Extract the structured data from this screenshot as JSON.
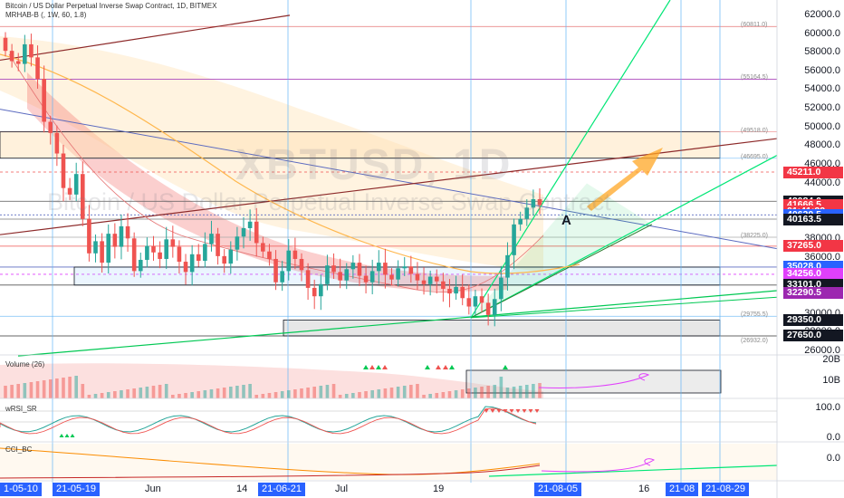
{
  "header": {
    "title": "Bitcoin / US Dollar Perpetual Inverse Swap Contract, 1D, BITMEX",
    "indicator": "MRHAB-B (, 1W, 60, 1.8)"
  },
  "watermark": {
    "symbol": "XBTUSD, 1D",
    "subtitle": "Bitcoin / US Dollar Perpetual Inverse Swap Contract"
  },
  "panes": {
    "volume_label": "Volume (26)",
    "wrsi_label": "wRSI_SR",
    "cci_label": "CCI_BC",
    "volume_ticks": [
      "20B",
      "10B"
    ],
    "wrsi_ticks": [
      "100.0",
      "0.0"
    ],
    "cci_ticks": [
      "0.0"
    ]
  },
  "chart_data": {
    "type": "candlestick",
    "y_axis_ticks": [
      "62000.0",
      "60000.0",
      "58000.0",
      "56000.0",
      "54000.0",
      "52000.0",
      "50000.0",
      "48000.0",
      "46000.0",
      "44000.0",
      "42000.0",
      "40000.0",
      "38000.0",
      "36000.0",
      "34000.0",
      "32000.0",
      "30000.0",
      "28000.0",
      "26000.0"
    ],
    "price_tags": [
      {
        "label": "45211.0",
        "value": 45211,
        "color": "#f23645"
      },
      {
        "label": "42084.0",
        "value": 42084,
        "color": "#131722"
      },
      {
        "label": "41666.5",
        "value": 41666.5,
        "color": "#f23645"
      },
      {
        "label": "01:41:22",
        "value": 40950,
        "color": "#f23645"
      },
      {
        "label": "40620.5",
        "value": 40620.5,
        "color": "#2962ff"
      },
      {
        "label": "40163.5",
        "value": 40163.5,
        "color": "#131722"
      },
      {
        "label": "37265.0",
        "value": 37265,
        "color": "#f23645"
      },
      {
        "label": "35028.0",
        "value": 35028,
        "color": "#2962ff"
      },
      {
        "label": "34256.0",
        "value": 34256,
        "color": "#e040fb"
      },
      {
        "label": "33101.0",
        "value": 33101,
        "color": "#131722"
      },
      {
        "label": "32290.5",
        "value": 32290.5,
        "color": "#9c27b0"
      },
      {
        "label": "29350.0",
        "value": 29350,
        "color": "#131722"
      },
      {
        "label": "27650.0",
        "value": 27650,
        "color": "#131722"
      }
    ],
    "level_labels": [
      {
        "label": "(60811.0)",
        "value": 60811
      },
      {
        "label": "(55164.5)",
        "value": 55164.5
      },
      {
        "label": "(49518.0)",
        "value": 49518
      },
      {
        "label": "(46695.0)",
        "value": 46695
      },
      {
        "label": "(38225.0)",
        "value": 38225
      },
      {
        "label": "(29755.5)",
        "value": 29755.5
      },
      {
        "label": "(26932.0)",
        "value": 26932
      }
    ],
    "x_axis_labels": [
      {
        "label": "1-05-10",
        "highlight": true
      },
      {
        "label": "21-05-19",
        "highlight": true
      },
      {
        "label": "Jun",
        "highlight": false
      },
      {
        "label": "14",
        "highlight": false
      },
      {
        "label": "21-06-21",
        "highlight": true
      },
      {
        "label": "Jul",
        "highlight": false
      },
      {
        "label": "19",
        "highlight": false
      },
      {
        "label": "21-08-05",
        "highlight": true
      },
      {
        "label": "16",
        "highlight": false
      },
      {
        "label": "21-08",
        "highlight": true
      },
      {
        "label": "21-08-29",
        "highlight": true
      }
    ],
    "annotation_text": "A",
    "closes": [
      58200,
      57100,
      56800,
      58900,
      57500,
      55200,
      50600,
      49400,
      47200,
      43500,
      42800,
      45000,
      40200,
      36500,
      37800,
      35500,
      38600,
      37200,
      39400,
      38100,
      34600,
      35800,
      37300,
      36600,
      35900,
      38000,
      37200,
      35600,
      34500,
      36400,
      35700,
      37500,
      38600,
      36200,
      35400,
      36900,
      38300,
      39200,
      39900,
      37600,
      36700,
      35900,
      33400,
      34600,
      36800,
      35900,
      34700,
      32800,
      31900,
      33200,
      35200,
      34500,
      33600,
      34800,
      35500,
      34100,
      33400,
      34600,
      35500,
      34200,
      33700,
      34900,
      35100,
      34300,
      33600,
      33200,
      34000,
      33500,
      32700,
      32200,
      32900,
      31700,
      30800,
      31900,
      31200,
      29900,
      31600,
      33900,
      36300,
      39600,
      40200,
      41400,
      42300,
      41666
    ]
  },
  "colors": {
    "up": "#26a69a",
    "down": "#ef5350",
    "accent": "#2962ff"
  }
}
